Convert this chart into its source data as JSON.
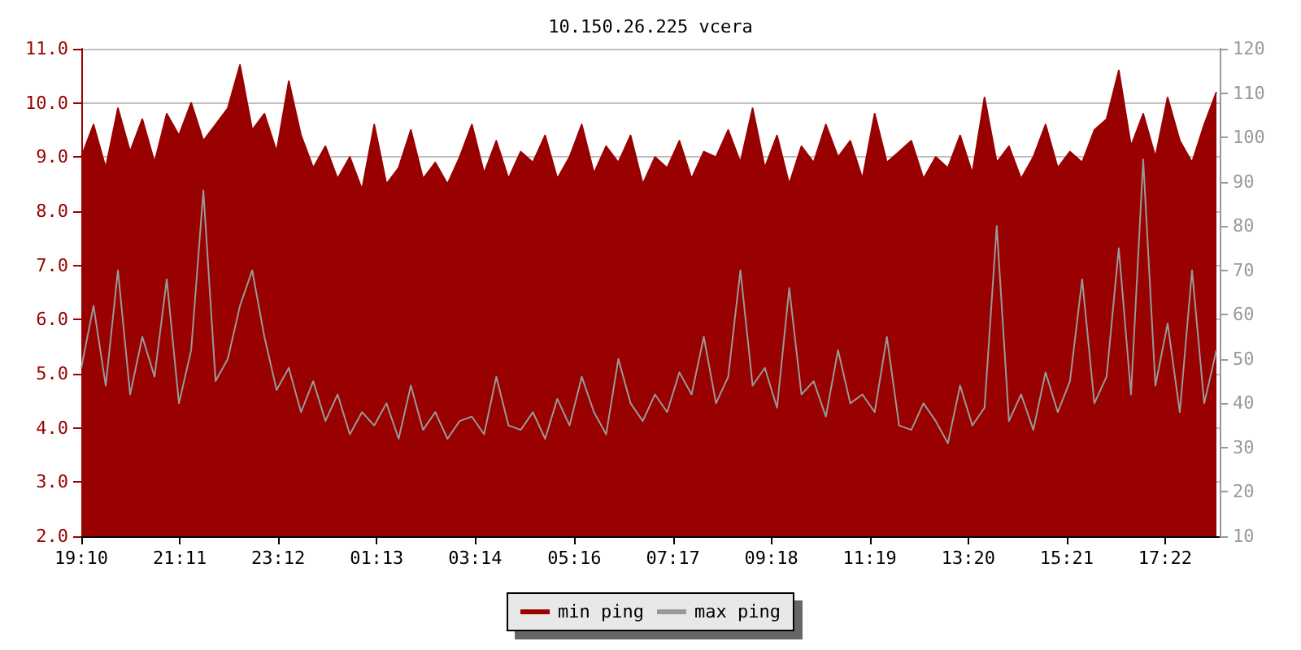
{
  "chart_data": {
    "type": "area",
    "title": "10.150.26.225 vcera",
    "legend": "bottom",
    "grid": "y",
    "line_style": "solid",
    "marker": "none",
    "x": [
      "--01-01T19:10",
      "--01-01T19:25",
      "--01-01T19:40",
      "--01-01T19:55",
      "--01-01T20:10",
      "--01-01T20:25",
      "--01-01T20:40",
      "--01-01T20:55",
      "--01-01T21:10",
      "--01-01T21:25",
      "--01-01T21:40",
      "--01-01T21:55",
      "--01-01T22:10",
      "--01-01T22:25",
      "--01-01T22:40",
      "--01-01T22:55",
      "--01-01T23:10",
      "--01-01T23:25",
      "--01-01T23:40",
      "--01-01T23:55",
      "--01-02T00:10",
      "--01-02T00:25",
      "--01-02T00:40",
      "--01-02T00:55",
      "--01-02T01:10",
      "--01-02T01:25",
      "--01-02T01:40",
      "--01-02T01:55",
      "--01-02T02:10",
      "--01-02T02:25",
      "--01-02T02:40",
      "--01-02T02:55",
      "--01-02T03:10",
      "--01-02T03:25",
      "--01-02T03:40",
      "--01-02T03:55",
      "--01-02T04:10",
      "--01-02T04:25",
      "--01-02T04:40",
      "--01-02T04:55",
      "--01-02T05:10",
      "--01-02T05:25",
      "--01-02T05:40",
      "--01-02T05:55",
      "--01-02T06:10",
      "--01-02T06:25",
      "--01-02T06:40",
      "--01-02T06:55",
      "--01-02T07:10",
      "--01-02T07:25",
      "--01-02T07:40",
      "--01-02T07:55",
      "--01-02T08:10",
      "--01-02T08:25",
      "--01-02T08:40",
      "--01-02T08:55",
      "--01-02T09:10",
      "--01-02T09:25",
      "--01-02T09:40",
      "--01-02T09:55",
      "--01-02T10:10",
      "--01-02T10:25",
      "--01-02T10:40",
      "--01-02T10:55",
      "--01-02T11:10",
      "--01-02T11:25",
      "--01-02T11:40",
      "--01-02T11:55",
      "--01-02T12:10",
      "--01-02T12:25",
      "--01-02T12:40",
      "--01-02T12:55",
      "--01-02T13:10",
      "--01-02T13:25",
      "--01-02T13:40",
      "--01-02T13:55",
      "--01-02T14:10",
      "--01-02T14:25",
      "--01-02T14:40",
      "--01-02T14:55",
      "--01-02T15:10",
      "--01-02T15:25",
      "--01-02T15:40",
      "--01-02T15:55",
      "--01-02T16:10",
      "--01-02T16:25",
      "--01-02T16:40",
      "--01-02T16:55",
      "--01-02T17:10",
      "--01-02T17:25",
      "--01-02T17:40",
      "--01-02T17:55",
      "--01-02T18:10",
      "--01-02T18:25"
    ],
    "xlim": [
      "--01-01T19:10",
      "--01-02T18:29"
    ],
    "xticks": [
      {
        "value": "--01-01T19:10",
        "label": "19:10"
      },
      {
        "value": "--01-01T21:11",
        "label": "21:11"
      },
      {
        "value": "--01-01T23:12",
        "label": "23:12"
      },
      {
        "value": "--01-02T01:13",
        "label": "01:13"
      },
      {
        "value": "--01-02T03:14",
        "label": "03:14"
      },
      {
        "value": "--01-02T05:16",
        "label": "05:16"
      },
      {
        "value": "--01-02T07:17",
        "label": "07:17"
      },
      {
        "value": "--01-02T09:18",
        "label": "09:18"
      },
      {
        "value": "--01-02T11:19",
        "label": "11:19"
      },
      {
        "value": "--01-02T13:20",
        "label": "13:20"
      },
      {
        "value": "--01-02T15:21",
        "label": "15:21"
      },
      {
        "value": "--01-02T17:22",
        "label": "17:22"
      }
    ],
    "ylim": [
      2,
      11
    ],
    "yticks": [
      {
        "value": 2,
        "label": "2.0"
      },
      {
        "value": 3,
        "label": "3.0"
      },
      {
        "value": 4,
        "label": "4.0"
      },
      {
        "value": 5,
        "label": "5.0"
      },
      {
        "value": 6,
        "label": "6.0"
      },
      {
        "value": 7,
        "label": "7.0"
      },
      {
        "value": 8,
        "label": "8.0"
      },
      {
        "value": 9,
        "label": "9.0"
      },
      {
        "value": 10,
        "label": "10.0"
      },
      {
        "value": 11,
        "label": "11.0"
      }
    ],
    "y2lim": [
      10,
      120
    ],
    "y2ticks": [
      10,
      20,
      30,
      40,
      50,
      60,
      70,
      80,
      90,
      100,
      110,
      120
    ],
    "series": [
      {
        "name": "min ping",
        "color": "#990000",
        "values": [
          9.0,
          9.6,
          8.8,
          9.9,
          9.1,
          9.7,
          8.9,
          9.8,
          9.4,
          10.0,
          9.3,
          9.6,
          9.9,
          10.7,
          9.5,
          9.8,
          9.1,
          10.4,
          9.4,
          8.8,
          9.2,
          8.6,
          9.0,
          8.4,
          9.6,
          8.5,
          8.8,
          9.5,
          8.6,
          8.9,
          8.5,
          9.0,
          9.6,
          8.7,
          9.3,
          8.6,
          9.1,
          8.9,
          9.4,
          8.6,
          9.0,
          9.6,
          8.7,
          9.2,
          8.9,
          9.4,
          8.5,
          9.0,
          8.8,
          9.3,
          8.6,
          9.1,
          9.0,
          9.5,
          8.9,
          9.9,
          8.8,
          9.4,
          8.5,
          9.2,
          8.9,
          9.6,
          9.0,
          9.3,
          8.6,
          9.8,
          8.9,
          9.1,
          9.3,
          8.6,
          9.0,
          8.8,
          9.4,
          8.7,
          10.1,
          8.9,
          9.2,
          8.6,
          9.0,
          9.6,
          8.8,
          9.1,
          8.9,
          9.5,
          9.7,
          10.6,
          9.2,
          9.8,
          9.0,
          10.1,
          9.3,
          8.9,
          9.6,
          10.2
        ]
      },
      {
        "name": "max ping",
        "type": "line",
        "axis": "y2",
        "color": "#999999",
        "values": [
          48,
          62,
          44,
          70,
          42,
          55,
          46,
          68,
          40,
          52,
          88,
          45,
          50,
          62,
          70,
          55,
          43,
          48,
          38,
          45,
          36,
          42,
          33,
          38,
          35,
          40,
          32,
          44,
          34,
          38,
          32,
          36,
          37,
          33,
          46,
          35,
          34,
          38,
          32,
          41,
          35,
          46,
          38,
          33,
          50,
          40,
          36,
          42,
          38,
          47,
          42,
          55,
          40,
          46,
          70,
          44,
          48,
          39,
          66,
          42,
          45,
          37,
          52,
          40,
          42,
          38,
          55,
          35,
          34,
          40,
          36,
          31,
          44,
          35,
          39,
          80,
          36,
          42,
          34,
          47,
          38,
          45,
          68,
          40,
          46,
          75,
          42,
          95,
          44,
          58,
          38,
          70,
          40,
          52
        ]
      }
    ]
  }
}
